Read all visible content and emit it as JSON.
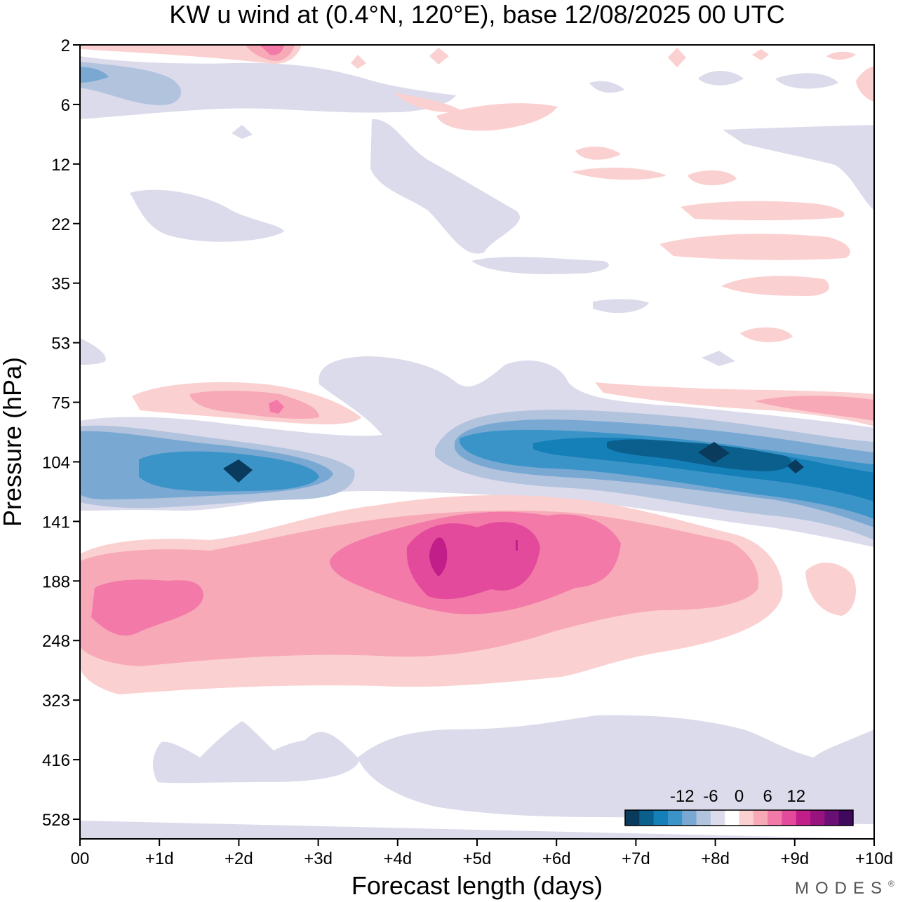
{
  "chart_data": {
    "type": "heatmap",
    "title": "KW u wind at (0.4°N, 120°E),  base 12/08/2025  00 UTC",
    "xlabel": "Forecast length (days)",
    "ylabel": "Pressure (hPa)",
    "x_ticks": [
      "00",
      "+1d",
      "+2d",
      "+3d",
      "+4d",
      "+5d",
      "+6d",
      "+7d",
      "+8d",
      "+9d",
      "+10d"
    ],
    "x_range_days": [
      0,
      10
    ],
    "y_ticks": [
      "2",
      "6",
      "12",
      "22",
      "35",
      "53",
      "75",
      "104",
      "141",
      "188",
      "248",
      "323",
      "416",
      "528"
    ],
    "y_scale": "log-pressure",
    "colorbar": {
      "labels": [
        "-12",
        "-6",
        "0",
        "6",
        "12"
      ],
      "levels": [
        -15,
        -12,
        -9,
        -6,
        -3,
        0,
        3,
        6,
        9,
        12,
        15
      ],
      "colors": [
        "#0a3a5c",
        "#0a5f8c",
        "#157fb8",
        "#3b94c7",
        "#79a9d3",
        "#b2c3de",
        "#dcdbeb",
        "#ffffff",
        "#fbd0d0",
        "#f7a9b7",
        "#f279a8",
        "#e44a9c",
        "#c21e8a",
        "#98137e",
        "#6a0f73",
        "#3f0a5d"
      ]
    },
    "features": [
      {
        "name": "negative-band-upper",
        "pressure_hPa": 104,
        "days": [
          0,
          10
        ],
        "min_value": -13.5,
        "peak_days": [
          2.0,
          8.0,
          9.0
        ]
      },
      {
        "name": "positive-band-lower",
        "pressure_hPa": 160,
        "days": [
          0,
          9.5
        ],
        "max_value": 11,
        "peak_days": [
          0.7,
          4.5,
          5.5
        ]
      },
      {
        "name": "positive-band-75hPa",
        "pressure_hPa": 75,
        "days": [
          0.7,
          3.5
        ],
        "max_value": 7
      },
      {
        "name": "negative-patch-lower",
        "pressure_hPa": 440,
        "days": [
          1.0,
          10
        ],
        "min_value": -4.5
      }
    ]
  },
  "branding": {
    "logo_text": "MODES",
    "logo_mark": "®"
  }
}
